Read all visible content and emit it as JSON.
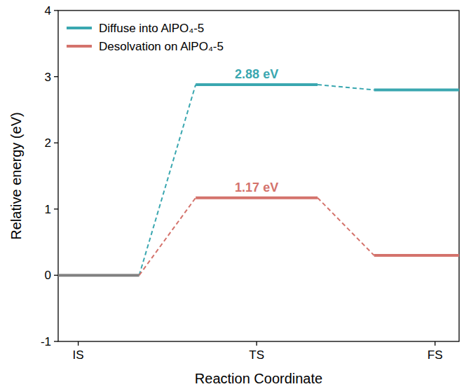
{
  "chart_data": {
    "type": "energy_profile",
    "x_label": "Reaction Coordinate",
    "y_label": "Relative energy (eV)",
    "categories": [
      "IS",
      "TS",
      "FS"
    ],
    "series": [
      {
        "name": "Diffuse into AlPO₄-5",
        "color": "#3aa7b0",
        "values": [
          0,
          2.88,
          2.8
        ],
        "value_labels": [
          null,
          "2.88 eV",
          null
        ],
        "line_style": "dashed"
      },
      {
        "name": "Desolvation on AlPO₄-5",
        "color": "#d4736c",
        "values": [
          0,
          1.17,
          0.3
        ],
        "value_labels": [
          null,
          "1.17 eV",
          null
        ],
        "line_style": "dashed"
      }
    ],
    "ylim": [
      -1,
      4
    ],
    "yticks": [
      -1,
      0,
      1,
      2,
      3,
      4
    ],
    "legend": "upper left",
    "data_labels": true
  }
}
